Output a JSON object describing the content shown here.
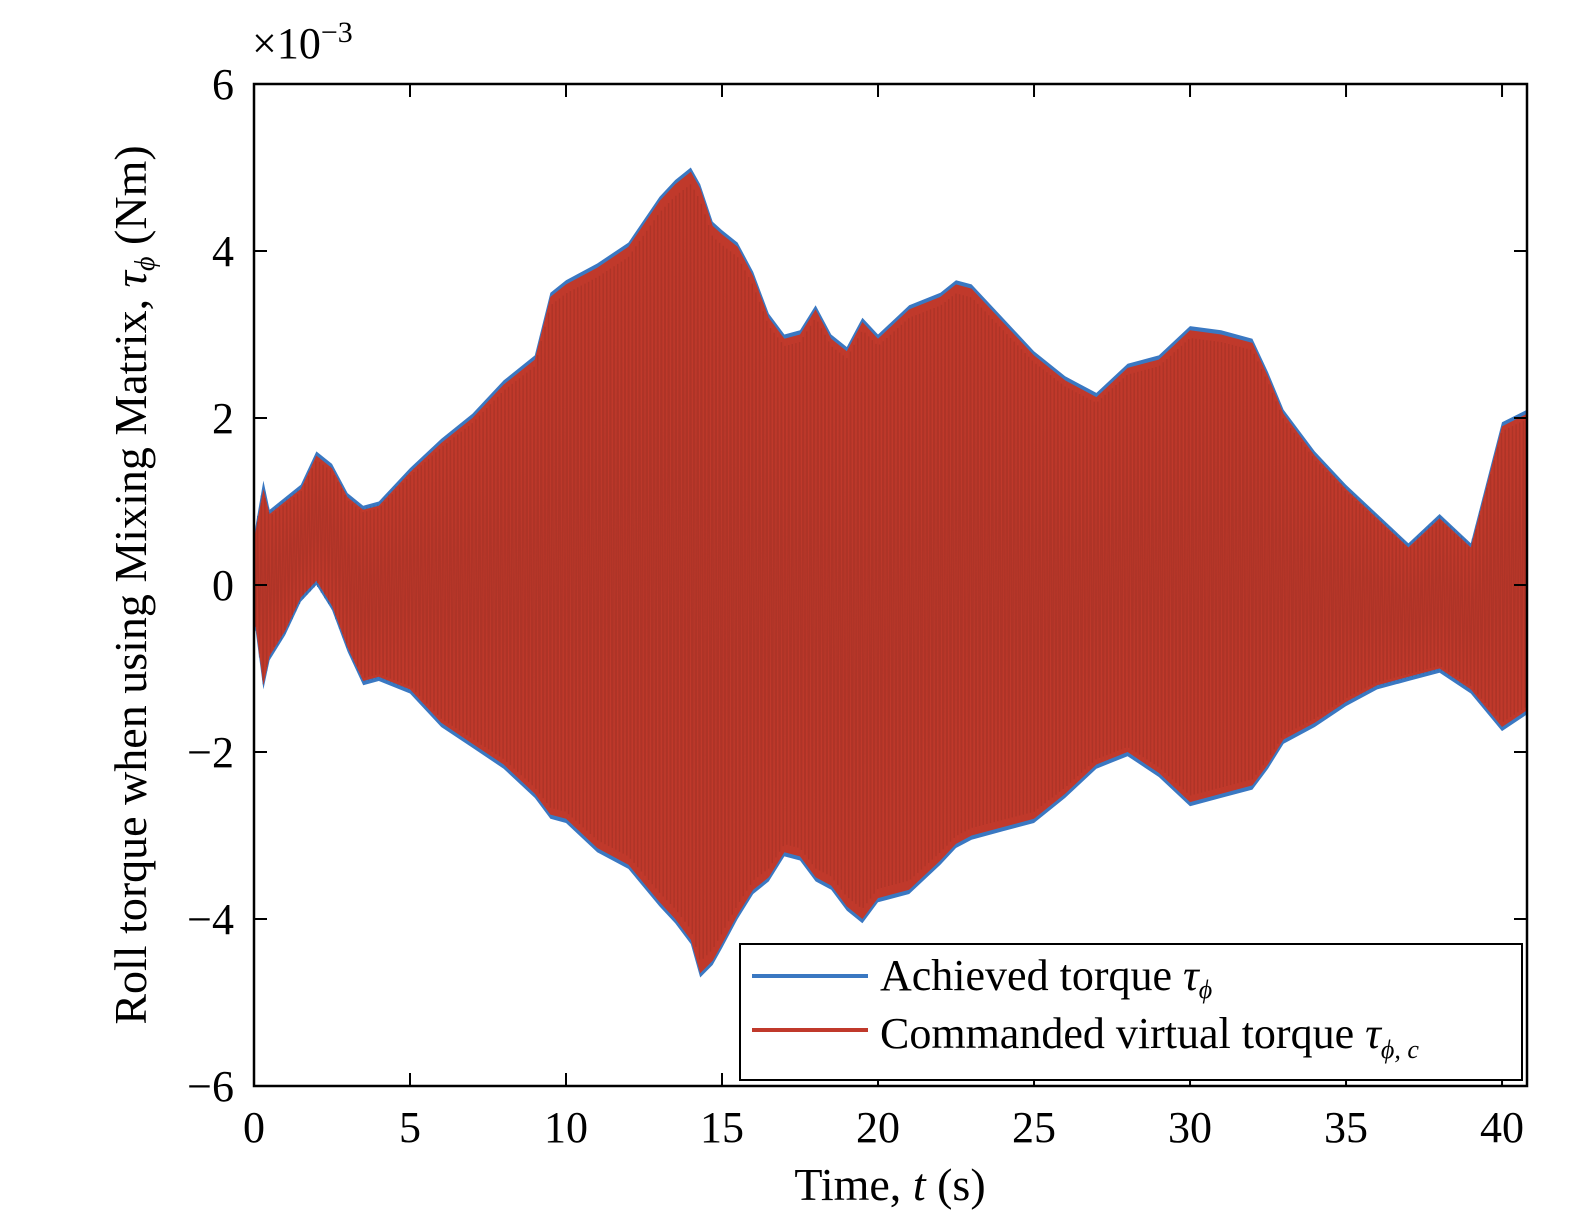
{
  "chart_data": {
    "type": "area",
    "title": "",
    "xlabel": "Time, ",
    "xlabel_var": "t",
    "xlabel_unit": " (s)",
    "ylabel": "Roll torque when using Mixing Matrix, ",
    "ylabel_var": "τ",
    "ylabel_sub": "ϕ",
    "ylabel_unit": " (Nm)",
    "y_multiplier": "×10",
    "y_multiplier_exp": "−3",
    "xlim": [
      0,
      40.8
    ],
    "ylim": [
      -6,
      6
    ],
    "xticks": [
      0,
      5,
      10,
      15,
      20,
      25,
      30,
      35,
      40
    ],
    "xtick_labels": [
      "0",
      "5",
      "10",
      "15",
      "20",
      "25",
      "30",
      "35",
      "40"
    ],
    "yticks": [
      -6,
      -4,
      -2,
      0,
      2,
      4,
      6
    ],
    "ytick_labels": [
      "−6",
      "−4",
      "−2",
      "0",
      "2",
      "4",
      "6"
    ],
    "grid": false,
    "legend_position": "bottom-right",
    "note": "values in units of 10^-3 Nm; each series oscillates rapidly between the upper and lower envelopes",
    "series": [
      {
        "name": "Achieved torque ",
        "name_var": "τ",
        "name_sub": "ϕ",
        "color": "#3a78c2",
        "x": [
          0,
          0.3,
          0.5,
          1.0,
          1.5,
          2.0,
          2.5,
          3.0,
          3.5,
          4.0,
          5.0,
          6.0,
          7.0,
          8.0,
          9.0,
          9.5,
          10.0,
          11.0,
          12.0,
          13.0,
          13.5,
          14.0,
          14.3,
          14.7,
          15.0,
          15.5,
          16.0,
          16.5,
          17.0,
          17.5,
          18.0,
          18.5,
          19.0,
          19.5,
          20.0,
          21.0,
          22.0,
          22.5,
          23.0,
          24.0,
          25.0,
          26.0,
          27.0,
          28.0,
          29.0,
          30.0,
          31.0,
          32.0,
          32.5,
          33.0,
          34.0,
          35.0,
          36.0,
          37.0,
          38.0,
          39.0,
          40.0,
          40.8
        ],
        "upper": [
          0.6,
          1.25,
          0.9,
          1.05,
          1.2,
          1.6,
          1.45,
          1.1,
          0.95,
          1.0,
          1.4,
          1.75,
          2.05,
          2.45,
          2.75,
          3.5,
          3.65,
          3.85,
          4.1,
          4.65,
          4.85,
          5.0,
          4.8,
          4.35,
          4.25,
          4.1,
          3.75,
          3.25,
          3.0,
          3.05,
          3.35,
          3.0,
          2.85,
          3.2,
          3.0,
          3.35,
          3.5,
          3.65,
          3.6,
          3.2,
          2.8,
          2.5,
          2.3,
          2.65,
          2.75,
          3.1,
          3.05,
          2.95,
          2.55,
          2.1,
          1.6,
          1.2,
          0.85,
          0.5,
          0.85,
          0.5,
          1.95,
          2.1
        ],
        "lower": [
          -0.4,
          -1.25,
          -0.9,
          -0.6,
          -0.2,
          0.0,
          -0.3,
          -0.8,
          -1.2,
          -1.15,
          -1.3,
          -1.7,
          -1.95,
          -2.2,
          -2.55,
          -2.8,
          -2.85,
          -3.2,
          -3.4,
          -3.85,
          -4.05,
          -4.3,
          -4.7,
          -4.55,
          -4.35,
          -4.0,
          -3.7,
          -3.55,
          -3.25,
          -3.3,
          -3.55,
          -3.65,
          -3.9,
          -4.05,
          -3.8,
          -3.7,
          -3.35,
          -3.15,
          -3.05,
          -2.95,
          -2.85,
          -2.55,
          -2.2,
          -2.05,
          -2.3,
          -2.65,
          -2.55,
          -2.45,
          -2.2,
          -1.9,
          -1.7,
          -1.45,
          -1.25,
          -1.15,
          -1.05,
          -1.3,
          -1.75,
          -1.55
        ]
      },
      {
        "name": "Commanded virtual torque ",
        "name_var": "τ",
        "name_sub": "ϕ, c",
        "color": "#c0392b",
        "x": [
          0,
          0.3,
          0.5,
          1.0,
          1.5,
          2.0,
          2.5,
          3.0,
          3.5,
          4.0,
          5.0,
          6.0,
          7.0,
          8.0,
          9.0,
          9.5,
          10.0,
          11.0,
          12.0,
          13.0,
          13.5,
          14.0,
          14.3,
          14.7,
          15.0,
          15.5,
          16.0,
          16.5,
          17.0,
          17.5,
          18.0,
          18.5,
          19.0,
          19.5,
          20.0,
          21.0,
          22.0,
          22.5,
          23.0,
          24.0,
          25.0,
          26.0,
          27.0,
          28.0,
          29.0,
          30.0,
          31.0,
          32.0,
          32.5,
          33.0,
          34.0,
          35.0,
          36.0,
          37.0,
          38.0,
          39.0,
          40.0,
          40.8
        ],
        "upper": [
          0.55,
          1.15,
          0.85,
          1.0,
          1.15,
          1.55,
          1.4,
          1.05,
          0.9,
          0.95,
          1.35,
          1.7,
          2.0,
          2.4,
          2.7,
          3.45,
          3.6,
          3.8,
          4.05,
          4.6,
          4.8,
          4.95,
          4.75,
          4.3,
          4.2,
          4.05,
          3.7,
          3.2,
          2.95,
          3.0,
          3.3,
          2.95,
          2.8,
          3.15,
          2.95,
          3.3,
          3.45,
          3.6,
          3.55,
          3.15,
          2.75,
          2.45,
          2.25,
          2.6,
          2.7,
          3.05,
          3.0,
          2.9,
          2.5,
          2.05,
          1.55,
          1.15,
          0.8,
          0.45,
          0.8,
          0.45,
          1.9,
          2.05
        ],
        "lower": [
          -0.35,
          -1.2,
          -0.85,
          -0.55,
          -0.15,
          0.05,
          -0.25,
          -0.75,
          -1.15,
          -1.1,
          -1.25,
          -1.65,
          -1.9,
          -2.15,
          -2.5,
          -2.75,
          -2.8,
          -3.15,
          -3.35,
          -3.8,
          -4.0,
          -4.25,
          -4.65,
          -4.5,
          -4.3,
          -3.95,
          -3.65,
          -3.5,
          -3.2,
          -3.25,
          -3.5,
          -3.6,
          -3.85,
          -4.0,
          -3.75,
          -3.65,
          -3.3,
          -3.1,
          -3.0,
          -2.9,
          -2.8,
          -2.5,
          -2.15,
          -2.0,
          -2.25,
          -2.6,
          -2.5,
          -2.4,
          -2.15,
          -1.85,
          -1.65,
          -1.4,
          -1.2,
          -1.1,
          -1.0,
          -1.25,
          -1.7,
          -1.5
        ]
      }
    ]
  }
}
